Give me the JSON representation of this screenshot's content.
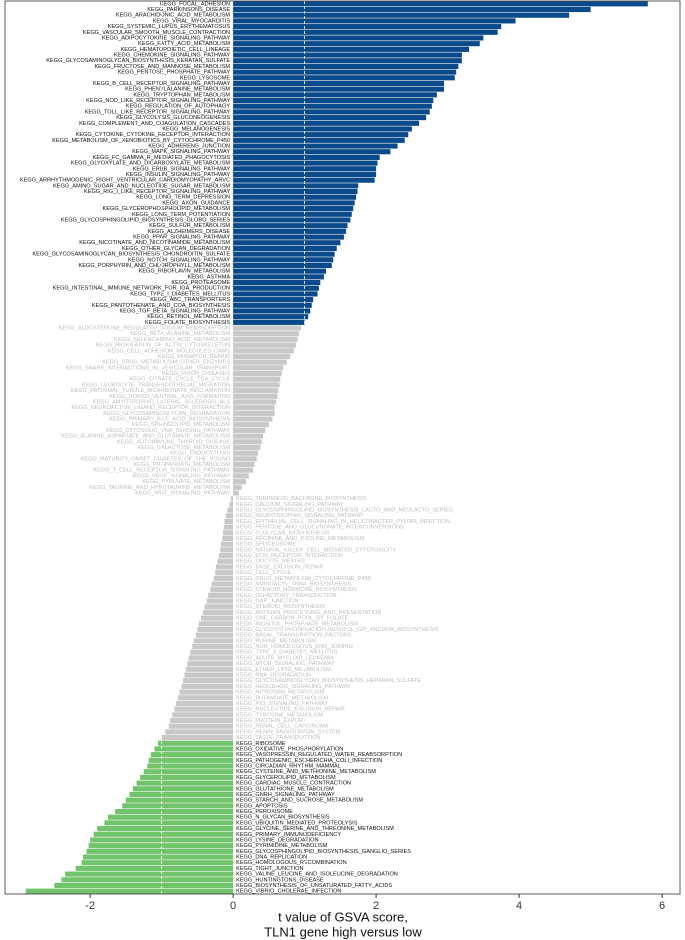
{
  "chart_data": {
    "type": "bar",
    "orientation": "horizontal",
    "xlabel": [
      "t value of GSVA score,",
      "TLN1 gene high versus low"
    ],
    "xlim": [
      -3.19,
      6.25
    ],
    "xticks": [
      -2,
      0,
      2,
      4,
      6
    ],
    "dashed_lines": [
      -1,
      1
    ],
    "series": [
      {
        "color": "#0b4a8a",
        "label_color": "#111111",
        "categories": [
          "KEGG_FOCAL_ADHESION",
          "KEGG_PARKINSONS_DISEASE",
          "KEGG_ARACHIDONIC_ACID_METABOLISM",
          "KEGG_VIRAL_MYOCARDITIS",
          "KEGG_SYSTEMIC_LUPUS_ERYTHEMATOSUS",
          "KEGG_VASCULAR_SMOOTH_MUSCLE_CONTRACTION",
          "KEGG_ADIPOCYTOKINE_SIGNALING_PATHWAY",
          "KEGG_FATTY_ACID_METABOLISM",
          "KEGG_HEMATOPOIETIC_CELL_LINEAGE",
          "KEGG_CHEMOKINE_SIGNALING_PATHWAY",
          "KEGG_GLYCOSAMINOGLYCAN_BIOSYNTHESIS_KERATAN_SULFATE",
          "KEGG_FRUCTOSE_AND_MANNOSE_METABOLISM",
          "KEGG_PENTOSE_PHOSPHATE_PATHWAY",
          "KEGG_LYSOSOME",
          "KEGG_B_CELL_RECEPTOR_SIGNALING_PATHWAY",
          "KEGG_PHENYLALANINE_METABOLISM",
          "KEGG_TRYPTOPHAN_METABOLISM",
          "KEGG_NOD_LIKE_RECEPTOR_SIGNALING_PATHWAY",
          "KEGG_REGULATION_OF_AUTOPHAGY",
          "KEGG_TOLL_LIKE_RECEPTOR_SIGNALING_PATHWAY",
          "KEGG_GLYCOLYSIS_GLUCONEOGENESIS",
          "KEGG_COMPLEMENT_AND_COAGULATION_CASCADES",
          "KEGG_MELANOGENESIS",
          "KEGG_CYTOKINE_CYTOKINE_RECEPTOR_INTERACTION",
          "KEGG_METABOLISM_OF_XENOBIOTICS_BY_CYTOCHROME_P450",
          "KEGG_ADHERENS_JUNCTION",
          "KEGG_MAPK_SIGNALING_PATHWAY",
          "KEGG_FC_GAMMA_R_MEDIATED_PHAGOCYTOSIS",
          "KEGG_GLYOXYLATE_AND_DICARBOXYLATE_METABOLISM",
          "KEGG_ERBB_SIGNALING_PATHWAY",
          "KEGG_INSULIN_SIGNALING_PATHWAY",
          "KEGG_ARRHYTHMOGENIC_RIGHT_VENTRICULAR_CARDIOMYOPATHY_ARVC",
          "KEGG_AMINO_SUGAR_AND_NUCLEOTIDE_SUGAR_METABOLISM",
          "KEGG_RIG_I_LIKE_RECEPTOR_SIGNALING_PATHWAY",
          "KEGG_LONG_TERM_DEPRESSION",
          "KEGG_AXON_GUIDANCE",
          "KEGG_GLYCEROPHOSPHOLIPID_METABOLISM",
          "KEGG_LONG_TERM_POTENTIATION",
          "KEGG_GLYCOSPHINGOLIPID_BIOSYNTHESIS_GLOBO_SERIES",
          "KEGG_SULFUR_METABOLISM",
          "KEGG_ALZHEIMERS_DISEASE",
          "KEGG_PPAR_SIGNALING_PATHWAY",
          "KEGG_NICOTINATE_AND_NICOTINAMIDE_METABOLISM",
          "KEGG_OTHER_GLYCAN_DEGRADATION",
          "KEGG_GLYCOSAMINOGLYCAN_BIOSYNTHESIS_CHONDROITIN_SULFATE",
          "KEGG_NOTCH_SIGNALING_PATHWAY",
          "KEGG_PORPHYRIN_AND_CHLOROPHYLL_METABOLISM",
          "KEGG_RIBOFLAVIN_METABOLISM",
          "KEGG_ASTHMA",
          "KEGG_PROTEASOME",
          "KEGG_INTESTINAL_IMMUNE_NETWORK_FOR_IGA_PRODUCTION",
          "KEGG_TYPE_I_DIABETES_MELLITUS",
          "KEGG_ABC_TRANSPORTERS",
          "KEGG_PANTOTHENATE_AND_COA_BIOSYNTHESIS",
          "KEGG_TGF_BETA_SIGNALING_PATHWAY",
          "KEGG_RETINOL_METABOLISM",
          "KEGG_FOLATE_BIOSYNTHESIS"
        ],
        "values": [
          5.8,
          5.0,
          4.7,
          3.95,
          3.75,
          3.7,
          3.5,
          3.45,
          3.3,
          3.2,
          3.2,
          3.15,
          3.12,
          3.1,
          2.95,
          2.95,
          2.85,
          2.8,
          2.78,
          2.75,
          2.7,
          2.6,
          2.5,
          2.45,
          2.4,
          2.3,
          2.2,
          2.05,
          2.02,
          2.0,
          2.0,
          1.98,
          1.75,
          1.74,
          1.72,
          1.7,
          1.68,
          1.66,
          1.64,
          1.6,
          1.58,
          1.55,
          1.5,
          1.45,
          1.42,
          1.4,
          1.38,
          1.3,
          1.27,
          1.22,
          1.2,
          1.18,
          1.12,
          1.1,
          1.08,
          1.05,
          1.0
        ]
      },
      {
        "color": "#c9c7c7",
        "label_color": "#bdbdbd",
        "categories": [
          "KEGG_ALDOSTERONE_REGULATED_SODIUM_REABSORPTION",
          "KEGG_BETA_ALANINE_METABOLISM",
          "KEGG_SELENOAMINO_ACID_METABOLISM",
          "KEGG_REGULATION_OF_ACTIN_CYTOSKELETON",
          "KEGG_CELL_ADHESION_MOLECULES_CAMS",
          "KEGG_MISMATCH_REPAIR",
          "KEGG_DRUG_METABOLISM_OTHER_ENZYMES",
          "KEGG_SNARE_INTERACTIONS_IN_VESICULAR_TRANSPORT",
          "KEGG_PRION_DISEASES",
          "KEGG_CITRATE_CYCLE_TCA_CYCLE",
          "KEGG_LEUKOCYTE_TRANSENDOTHELIAL_MIGRATION",
          "KEGG_PROXIMAL_TUBULE_BICARBONATE_RECLAMATION",
          "KEGG_DORSO_VENTRAL_AXIS_FORMATION",
          "KEGG_AMYOTROPHIC_LATERAL_SCLEROSIS_ALS",
          "KEGG_NEUROACTIVE_LIGAND_RECEPTOR_INTERACTION",
          "KEGG_GLYCOSAMINOGLYCAN_DEGRADATION",
          "KEGG_PRIMARY_BILE_ACID_BIOSYNTHESIS",
          "KEGG_SPHINGOLIPID_METABOLISM",
          "KEGG_CYTOSOLIC_DNA_SENSING_PATHWAY",
          "KEGG_ALANINE_ASPARTATE_AND_GLUTAMATE_METABOLISM",
          "KEGG_AUTOIMMUNE_THYROID_DISEASE",
          "KEGG_GALACTOSE_METABOLISM",
          "KEGG_ENDOCYTOSIS",
          "KEGG_MATURITY_ONSET_DIABETES_OF_THE_YOUNG",
          "KEGG_PROPANOATE_METABOLISM",
          "KEGG_T_CELL_RECEPTOR_SIGNALING_PATHWAY",
          "KEGG_VEGF_SIGNALING_PATHWAY",
          "KEGG_PYRUVATE_METABOLISM",
          "KEGG_TAURINE_AND_HYPOTAURINE_METABOLISM",
          "KEGG_WNT_SIGNALING_PATHWAY",
          "KEGG_TERPENOID_BACKBONE_BIOSYNTHESIS",
          "KEGG_CALCIUM_SIGNALING_PATHWAY",
          "KEGG_GLYCOSPHINGOLIPID_BIOSYNTHESIS_LACTO_AND_NEOLACTO_SERIES",
          "KEGG_NEUROTROPHIN_SIGNALING_PATHWAY",
          "KEGG_EPITHELIAL_CELL_SIGNALING_IN_HELICOBACTER_PYLORI_INFECTION",
          "KEGG_PENTOSE_AND_GLUCURONATE_INTERCONVERSIONS",
          "KEGG_O_GLYCAN_BIOSYNTHESIS",
          "KEGG_ARGININE_AND_PROLINE_METABOLISM",
          "KEGG_SPLICEOSOME",
          "KEGG_NATURAL_KILLER_CELL_MEDIATED_CYTOTOXICITY",
          "KEGG_ECM_RECEPTOR_INTERACTION",
          "KEGG_OOCYTE_MEIOSIS",
          "KEGG_BASE_EXCISION_REPAIR",
          "KEGG_CELL_CYCLE",
          "KEGG_DRUG_METABOLISM_CYTOCHROME_P450",
          "KEGG_AMINOACYL_TRNA_BIOSYNTHESIS",
          "KEGG_STEROID_HORMONE_BIOSYNTHESIS",
          "KEGG_OLFACTORY_TRANSDUCTION",
          "KEGG_GAP_JUNCTION",
          "KEGG_STEROID_BIOSYNTHESIS",
          "KEGG_ANTIGEN_PROCESSING_AND_PRESENTATION",
          "KEGG_ONE_CARBON_POOL_BY_FOLATE",
          "KEGG_INOSITOL_PHOSPHATE_METABOLISM",
          "KEGG_GLYCOSYLPHOSPHATIDYLINOSITOL_GPI_ANCHOR_BIOSYNTHESIS",
          "KEGG_BASAL_TRANSCRIPTION_FACTORS",
          "KEGG_PURINE_METABOLISM",
          "KEGG_NON_HOMOLOGOUS_END_JOINING",
          "KEGG_TYPE_II_DIABETES_MELLITUS",
          "KEGG_ACUTE_MYELOID_LEUKEMIA",
          "KEGG_MTOR_SIGNALING_PATHWAY",
          "KEGG_ETHER_LIPID_METABOLISM",
          "KEGG_RNA_DEGRADATION",
          "KEGG_GLYCOSAMINOGLYCAN_BIOSYNTHESIS_HEPARAN_SULFATE",
          "KEGG_HEDGEHOG_SIGNALING_PATHWAY",
          "KEGG_NITROGEN_METABOLISM",
          "KEGG_BUTANOATE_METABOLISM",
          "KEGG_P53_SIGNALING_PATHWAY",
          "KEGG_NUCLEOTIDE_EXCISION_REPAIR",
          "KEGG_TYROSINE_METABOLISM",
          "KEGG_PROTEIN_EXPORT",
          "KEGG_RENAL_CELL_CARCINOMA",
          "KEGG_RENIN_ANGIOTENSIN_SYSTEM",
          "KEGG_TASTE_TRANSDUCTION"
        ],
        "values": [
          0.95,
          0.92,
          0.9,
          0.88,
          0.85,
          0.8,
          0.75,
          0.7,
          0.68,
          0.66,
          0.65,
          0.63,
          0.62,
          0.6,
          0.58,
          0.58,
          0.55,
          0.5,
          0.45,
          0.42,
          0.4,
          0.38,
          0.35,
          0.33,
          0.3,
          0.28,
          0.22,
          0.18,
          0.12,
          0.08,
          -0.03,
          -0.05,
          -0.08,
          -0.1,
          -0.12,
          -0.13,
          -0.14,
          -0.15,
          -0.17,
          -0.18,
          -0.2,
          -0.22,
          -0.24,
          -0.25,
          -0.27,
          -0.3,
          -0.32,
          -0.35,
          -0.37,
          -0.4,
          -0.42,
          -0.45,
          -0.48,
          -0.5,
          -0.52,
          -0.55,
          -0.57,
          -0.6,
          -0.62,
          -0.64,
          -0.66,
          -0.68,
          -0.7,
          -0.72,
          -0.75,
          -0.77,
          -0.8,
          -0.82,
          -0.85,
          -0.88,
          -0.9,
          -0.95,
          -1.0
        ]
      },
      {
        "color": "#72c46c",
        "label_color": "#111111",
        "categories": [
          "KEGG_RIBOSOME",
          "KEGG_OXIDATIVE_PHOSPHORYLATION",
          "KEGG_VASOPRESSIN_REGULATED_WATER_REABSORPTION",
          "KEGG_PATHOGENIC_ESCHERICHIA_COLI_INFECTION",
          "KEGG_CIRCADIAN_RHYTHM_MAMMAL",
          "KEGG_CYSTEINE_AND_METHIONINE_METABOLISM",
          "KEGG_GLYCEROLIPID_METABOLISM",
          "KEGG_CARDIAC_MUSCLE_CONTRACTION",
          "KEGG_GLUTATHIONE_METABOLISM",
          "KEGG_GNRH_SIGNALING_PATHWAY",
          "KEGG_STARCH_AND_SUCROSE_METABOLISM",
          "KEGG_APOPTOSIS",
          "KEGG_PEROXISOME",
          "KEGG_N_GLYCAN_BIOSYNTHESIS",
          "KEGG_UBIQUITIN_MEDIATED_PROTEOLYSIS",
          "KEGG_GLYCINE_SERINE_AND_THREONINE_METABOLISM",
          "KEGG_PRIMARY_IMMUNODEFICIENCY",
          "KEGG_LYSINE_DEGRADATION",
          "KEGG_PYRIMIDINE_METABOLISM",
          "KEGG_GLYCOSPHINGOLIPID_BIOSYNTHESIS_GANGLIO_SERIES",
          "KEGG_DNA_REPLICATION",
          "KEGG_HOMOLOGOUS_RECOMBINATION",
          "KEGG_TIGHT_JUNCTION",
          "KEGG_VALINE_LEUCINE_AND_ISOLEUCINE_DEGRADATION",
          "KEGG_HUNTINGTONS_DISEASE",
          "KEGG_BIOSYNTHESIS_OF_UNSATURATED_FATTY_ACIDS",
          "KEGG_VIBRIO_CHOLERAE_INFECTION"
        ],
        "values": [
          -1.05,
          -1.1,
          -1.15,
          -1.18,
          -1.2,
          -1.25,
          -1.3,
          -1.35,
          -1.4,
          -1.45,
          -1.5,
          -1.55,
          -1.65,
          -1.75,
          -1.8,
          -1.9,
          -1.95,
          -2.0,
          -2.02,
          -2.05,
          -2.1,
          -2.12,
          -2.2,
          -2.35,
          -2.4,
          -2.5,
          -2.9
        ]
      }
    ]
  }
}
